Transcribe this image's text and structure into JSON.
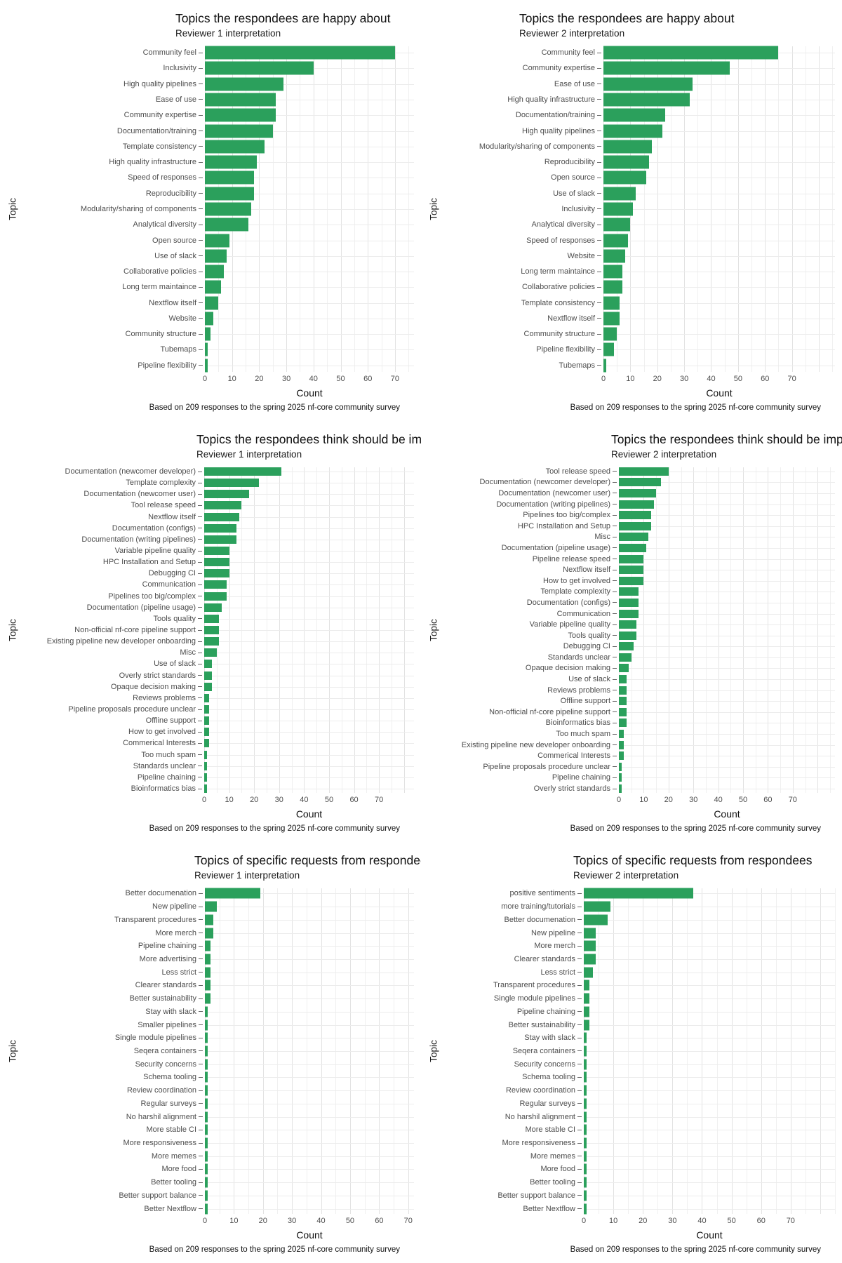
{
  "figure": {
    "background": "#ffffff",
    "bar_color": "#2ba05c",
    "grid_major_color": "#e2e2e2",
    "grid_minor_color": "#f0f0f0",
    "xlabel": "Count",
    "ylabel": "Topic",
    "caption": "Based on 209 responses to the spring 2025 nf-core community survey"
  },
  "chart_data": [
    {
      "type": "bar",
      "orientation": "horizontal",
      "title": "Topics the respondees are happy about",
      "subtitle": "Reviewer 1 interpretation",
      "caption": "Based on 209 responses to the spring 2025 nf-core community survey",
      "xlabel": "Count",
      "ylabel": "Topic",
      "x_ticks": [
        0,
        10,
        20,
        30,
        40,
        50,
        60,
        70
      ],
      "x_max": 77,
      "grid": true,
      "legend": false,
      "categories": [
        "Community feel",
        "Inclusivity",
        "High quality pipelines",
        "Ease of use",
        "Community expertise",
        "Documentation/training",
        "Template consistency",
        "High quality infrastructure",
        "Speed of responses",
        "Reproducibility",
        "Modularity/sharing of components",
        "Analytical diversity",
        "Open source",
        "Use of slack",
        "Collaborative policies",
        "Long term maintaince",
        "Nextflow itself",
        "Website",
        "Community structure",
        "Tubemaps",
        "Pipeline flexibility"
      ],
      "values": [
        70,
        40,
        29,
        26,
        26,
        25,
        22,
        19,
        18,
        18,
        17,
        16,
        9,
        8,
        7,
        6,
        5,
        3,
        2,
        1,
        1
      ]
    },
    {
      "type": "bar",
      "orientation": "horizontal",
      "title": "Topics the respondees are happy about",
      "subtitle": "Reviewer 2 interpretation",
      "caption": "Based on 209 responses to the spring 2025 nf-core community survey",
      "xlabel": "Count",
      "ylabel": "Topic",
      "x_ticks": [
        0,
        10,
        20,
        30,
        40,
        50,
        60,
        70
      ],
      "x_max": 86,
      "grid": true,
      "legend": false,
      "categories": [
        "Community feel",
        "Community expertise",
        "Ease of use",
        "High quality infrastructure",
        "Documentation/training",
        "High quality pipelines",
        "Modularity/sharing of components",
        "Reproducibility",
        "Open source",
        "Use of slack",
        "Inclusivity",
        "Analytical diversity",
        "Speed of responses",
        "Website",
        "Long term maintaince",
        "Collaborative policies",
        "Template consistency",
        "Nextflow itself",
        "Community structure",
        "Pipeline flexibility",
        "Tubemaps"
      ],
      "values": [
        65,
        47,
        33,
        32,
        23,
        22,
        18,
        17,
        16,
        12,
        11,
        10,
        9,
        8,
        7,
        7,
        6,
        6,
        5,
        4,
        1
      ]
    },
    {
      "type": "bar",
      "orientation": "horizontal",
      "title": "Topics the respondees think should be improved upon",
      "subtitle": "Reviewer 1 interpretation",
      "caption": "Based on 209 responses to the spring 2025 nf-core community survey",
      "xlabel": "Count",
      "ylabel": "Topic",
      "x_ticks": [
        0,
        10,
        20,
        30,
        40,
        50,
        60,
        70
      ],
      "x_max": 84,
      "grid": true,
      "legend": false,
      "categories": [
        "Documentation (newcomer developer)",
        "Template complexity",
        "Documentation (newcomer user)",
        "Tool release speed",
        "Nextflow itself",
        "Documentation (configs)",
        "Documentation (writing pipelines)",
        "Variable pipeline quality",
        "HPC Installation and Setup",
        "Debugging CI",
        "Communication",
        "Pipelines too big/complex",
        "Documentation (pipeline usage)",
        "Tools quality",
        "Non-official nf-core pipeline support",
        "Existing pipeline new developer onboarding",
        "Misc",
        "Use of slack",
        "Overly strict standards",
        "Opaque decision making",
        "Reviews problems",
        "Pipeline proposals procedure unclear",
        "Offline support",
        "How to get involved",
        "Commerical Interests",
        "Too much spam",
        "Standards unclear",
        "Pipeline chaining",
        "Bioinformatics bias"
      ],
      "values": [
        31,
        22,
        18,
        15,
        14,
        13,
        13,
        10,
        10,
        10,
        9,
        9,
        7,
        6,
        6,
        6,
        5,
        3,
        3,
        3,
        2,
        2,
        2,
        2,
        2,
        1,
        1,
        1,
        1
      ]
    },
    {
      "type": "bar",
      "orientation": "horizontal",
      "title": "Topics the respondees think should be improved upon",
      "subtitle": "Reviewer 2 interpretation",
      "caption": "Based on 209 responses to the spring 2025 nf-core community survey",
      "xlabel": "Count",
      "ylabel": "Topic",
      "x_ticks": [
        0,
        10,
        20,
        30,
        40,
        50,
        60,
        70
      ],
      "x_max": 87,
      "grid": true,
      "legend": false,
      "categories": [
        "Tool release speed",
        "Documentation (newcomer developer)",
        "Documentation (newcomer user)",
        "Documentation (writing pipelines)",
        "Pipelines too big/complex",
        "HPC Installation and Setup",
        "Misc",
        "Documentation (pipeline usage)",
        "Pipeline release speed",
        "Nextflow itself",
        "How to get involved",
        "Template complexity",
        "Documentation (configs)",
        "Communication",
        "Variable pipeline quality",
        "Tools quality",
        "Debugging CI",
        "Standards unclear",
        "Opaque decision making",
        "Use of slack",
        "Reviews problems",
        "Offline support",
        "Non-official nf-core pipeline support",
        "Bioinformatics bias",
        "Too much spam",
        "Existing pipeline new developer onboarding",
        "Commerical Interests",
        "Pipeline proposals procedure unclear",
        "Pipeline chaining",
        "Overly strict standards"
      ],
      "values": [
        20,
        17,
        15,
        14,
        13,
        13,
        12,
        11,
        10,
        10,
        10,
        8,
        8,
        8,
        7,
        7,
        6,
        5,
        4,
        3,
        3,
        3,
        3,
        3,
        2,
        2,
        2,
        1,
        1,
        1
      ]
    },
    {
      "type": "bar",
      "orientation": "horizontal",
      "title": "Topics of specific requests from respondees",
      "subtitle": "Reviewer 1 interpretation",
      "caption": "Based on 209 responses to the spring 2025 nf-core community survey",
      "xlabel": "Count",
      "ylabel": "Topic",
      "x_ticks": [
        0,
        10,
        20,
        30,
        40,
        50,
        60,
        70
      ],
      "x_max": 72,
      "grid": true,
      "legend": false,
      "categories": [
        "Better documenation",
        "New pipeline",
        "Transparent procedures",
        "More merch",
        "Pipeline chaining",
        "More advertising",
        "Less strict",
        "Clearer standards",
        "Better sustainability",
        "Stay with slack",
        "Smaller pipelines",
        "Single module pipelines",
        "Seqera containers",
        "Security concerns",
        "Schema tooling",
        "Review coordination",
        "Regular surveys",
        "No harshil alignment",
        "More stable CI",
        "More responsiveness",
        "More memes",
        "More food",
        "Better tooling",
        "Better support balance",
        "Better Nextflow"
      ],
      "values": [
        19,
        4,
        3,
        3,
        2,
        2,
        2,
        2,
        2,
        1,
        1,
        1,
        1,
        1,
        1,
        1,
        1,
        1,
        1,
        1,
        1,
        1,
        1,
        1,
        1
      ]
    },
    {
      "type": "bar",
      "orientation": "horizontal",
      "title": "Topics of specific requests from respondees",
      "subtitle": "Reviewer 2 interpretation",
      "caption": "Based on 209 responses to the spring 2025 nf-core community survey",
      "xlabel": "Count",
      "ylabel": "Topic",
      "x_ticks": [
        0,
        10,
        20,
        30,
        40,
        50,
        60,
        70
      ],
      "x_max": 85,
      "grid": true,
      "legend": false,
      "categories": [
        "positive sentiments",
        "more training/tutorials",
        "Better documenation",
        "New pipeline",
        "More merch",
        "Clearer standards",
        "Less strict",
        "Transparent procedures",
        "Single module pipelines",
        "Pipeline chaining",
        "Better sustainability",
        "Stay with slack",
        "Seqera containers",
        "Security concerns",
        "Schema tooling",
        "Review coordination",
        "Regular surveys",
        "No harshil alignment",
        "More stable CI",
        "More responsiveness",
        "More memes",
        "More food",
        "Better tooling",
        "Better support balance",
        "Better Nextflow"
      ],
      "values": [
        37,
        9,
        8,
        4,
        4,
        4,
        3,
        2,
        2,
        2,
        2,
        1,
        1,
        1,
        1,
        1,
        1,
        1,
        1,
        1,
        1,
        1,
        1,
        1,
        1
      ]
    }
  ]
}
